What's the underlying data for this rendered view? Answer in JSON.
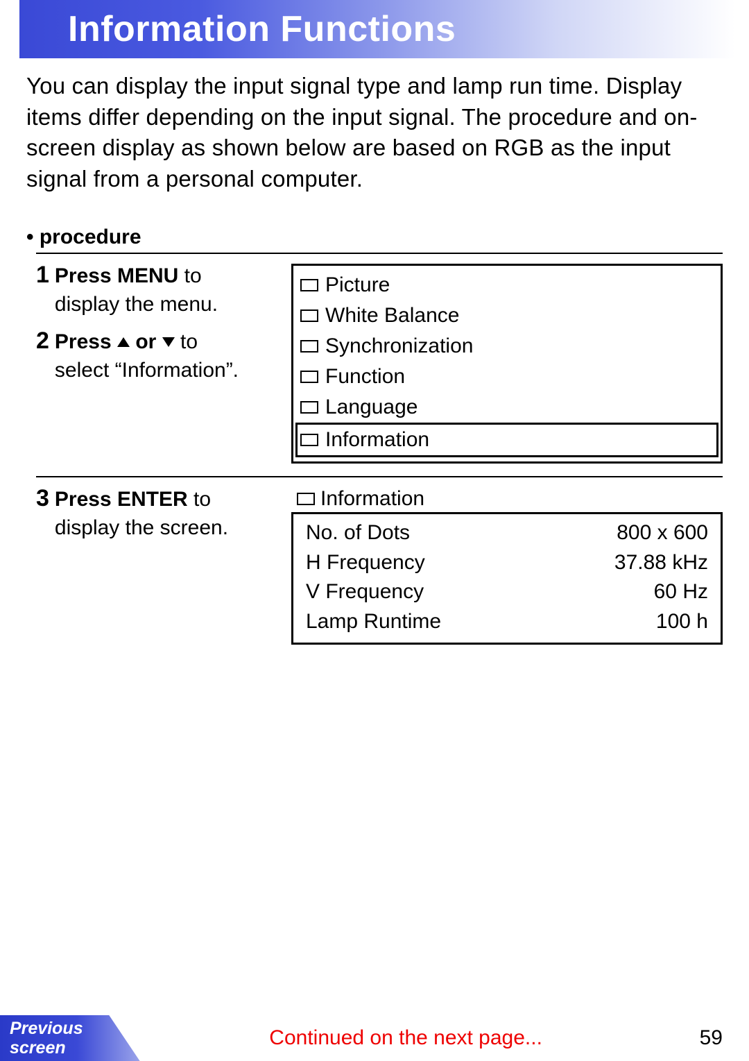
{
  "title": "Information Functions",
  "intro": "You can display the input signal type and lamp run time. Display items differ depending on the input signal. The procedure and on-screen display as shown below are based on RGB as the input signal from a personal computer.",
  "procedure_label": "• procedure",
  "steps": {
    "s1": {
      "num": "1",
      "bold": "Press MENU",
      "rest1": " to",
      "rest2": "display the menu."
    },
    "s2": {
      "num": "2",
      "bold1": "Press ",
      "bold2": " or ",
      "rest1": " to",
      "rest2": "select “Information”."
    },
    "s3": {
      "num": "3",
      "bold": "Press ENTER",
      "rest1": " to",
      "rest2": "display the screen."
    }
  },
  "menu": {
    "items": [
      "Picture",
      "White Balance",
      "Synchronization",
      "Function",
      "Language",
      "Information"
    ],
    "selected_index": 5
  },
  "info_screen": {
    "heading": "Information",
    "rows": [
      {
        "label": "No. of Dots",
        "value": "800 x 600"
      },
      {
        "label": "H Frequency",
        "value": "37.88 kHz"
      },
      {
        "label": "V Frequency",
        "value": "60 Hz"
      },
      {
        "label": "Lamp Runtime",
        "value": "100 h"
      }
    ]
  },
  "footer": {
    "prev1": "Previous",
    "prev2": "screen",
    "continued": "Continued on the next page...",
    "page": "59"
  },
  "colors": {
    "title_grad_start": "#3a49d6",
    "title_text": "#ffffff",
    "continued_text": "#ee0000",
    "body_text": "#000000"
  }
}
